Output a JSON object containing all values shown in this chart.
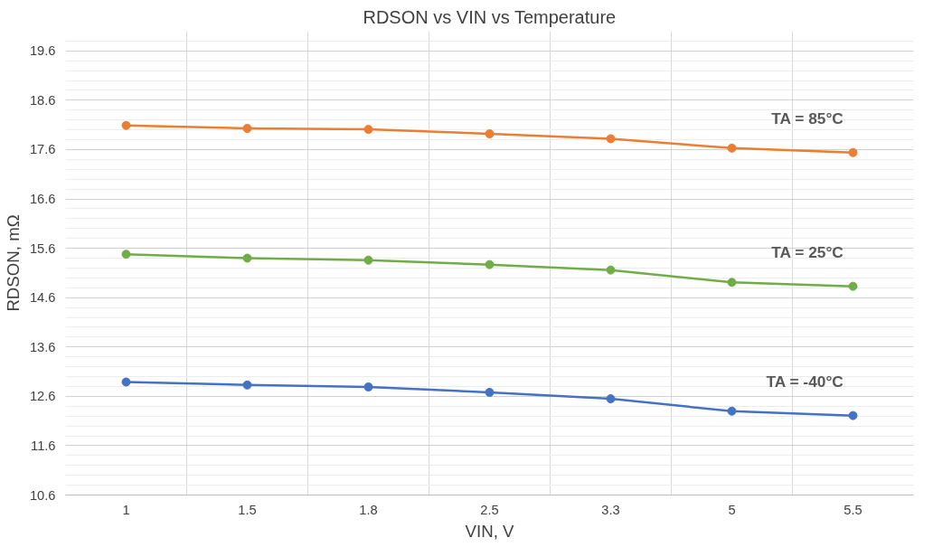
{
  "chart_data": {
    "type": "line",
    "title": "RDSON vs VIN vs Temperature",
    "xlabel": "VIN, V",
    "ylabel": "RDSON, mΩ",
    "categories": [
      "1",
      "1.5",
      "1.8",
      "2.5",
      "3.3",
      "5",
      "5.5"
    ],
    "series": [
      {
        "name": "TA = 85°C",
        "color": "#ed7d31",
        "values": [
          18.09,
          18.03,
          18.01,
          17.92,
          17.82,
          17.63,
          17.54
        ]
      },
      {
        "name": "TA = 25°C",
        "color": "#70ad47",
        "values": [
          15.48,
          15.4,
          15.36,
          15.27,
          15.16,
          14.91,
          14.83
        ]
      },
      {
        "name": "TA = -40°C",
        "color": "#4472c4",
        "values": [
          12.89,
          12.83,
          12.79,
          12.68,
          12.55,
          12.3,
          12.21
        ]
      }
    ],
    "ylim": [
      10.6,
      20.0
    ],
    "yticks": [
      10.6,
      11.6,
      12.6,
      13.6,
      14.6,
      15.6,
      16.6,
      17.6,
      18.6,
      19.6
    ],
    "grid": true,
    "marker": "circle",
    "line_style": "solid"
  }
}
